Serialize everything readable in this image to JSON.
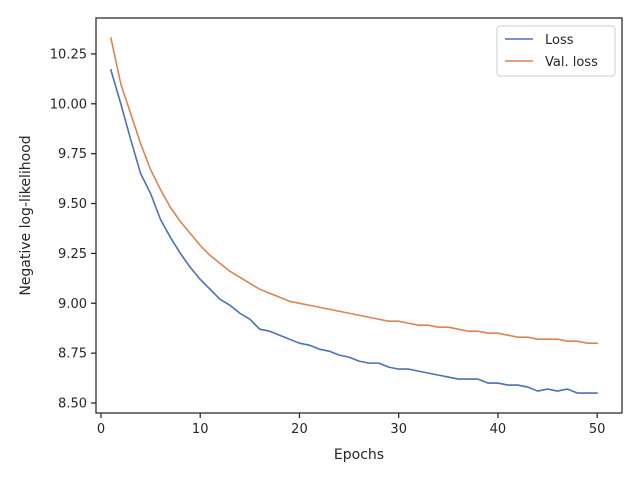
{
  "chart_data": {
    "type": "line",
    "xlabel": "Epochs",
    "ylabel": "Negative log-likelihood",
    "xlim": [
      -0.5,
      52.5
    ],
    "ylim": [
      8.45,
      10.43
    ],
    "xticks": [
      0,
      10,
      20,
      30,
      40,
      50
    ],
    "yticks": [
      8.5,
      8.75,
      9.0,
      9.25,
      9.5,
      9.75,
      10.0,
      10.25
    ],
    "ytick_labels": [
      "8.50",
      "8.75",
      "9.00",
      "9.25",
      "9.50",
      "9.75",
      "10.00",
      "10.25"
    ],
    "grid": false,
    "legend_position": "top-right",
    "x": [
      1,
      2,
      3,
      4,
      5,
      6,
      7,
      8,
      9,
      10,
      11,
      12,
      13,
      14,
      15,
      16,
      17,
      18,
      19,
      20,
      21,
      22,
      23,
      24,
      25,
      26,
      27,
      28,
      29,
      30,
      31,
      32,
      33,
      34,
      35,
      36,
      37,
      38,
      39,
      40,
      41,
      42,
      43,
      44,
      45,
      46,
      47,
      48,
      49,
      50
    ],
    "series": [
      {
        "name": "Loss",
        "color": "#4c72b0",
        "values": [
          10.17,
          10.0,
          9.82,
          9.65,
          9.55,
          9.42,
          9.33,
          9.25,
          9.18,
          9.12,
          9.07,
          9.02,
          8.99,
          8.95,
          8.92,
          8.87,
          8.86,
          8.84,
          8.82,
          8.8,
          8.79,
          8.77,
          8.76,
          8.74,
          8.73,
          8.71,
          8.7,
          8.7,
          8.68,
          8.67,
          8.67,
          8.66,
          8.65,
          8.64,
          8.63,
          8.62,
          8.62,
          8.62,
          8.6,
          8.6,
          8.59,
          8.59,
          8.58,
          8.56,
          8.57,
          8.56,
          8.57,
          8.55,
          8.55,
          8.55
        ]
      },
      {
        "name": "Val. loss",
        "color": "#dd8452",
        "values": [
          10.33,
          10.1,
          9.95,
          9.8,
          9.67,
          9.57,
          9.48,
          9.41,
          9.35,
          9.29,
          9.24,
          9.2,
          9.16,
          9.13,
          9.1,
          9.07,
          9.05,
          9.03,
          9.01,
          9.0,
          8.99,
          8.98,
          8.97,
          8.96,
          8.95,
          8.94,
          8.93,
          8.92,
          8.91,
          8.91,
          8.9,
          8.89,
          8.89,
          8.88,
          8.88,
          8.87,
          8.86,
          8.86,
          8.85,
          8.85,
          8.84,
          8.83,
          8.83,
          8.82,
          8.82,
          8.82,
          8.81,
          8.81,
          8.8,
          8.8
        ]
      }
    ]
  }
}
